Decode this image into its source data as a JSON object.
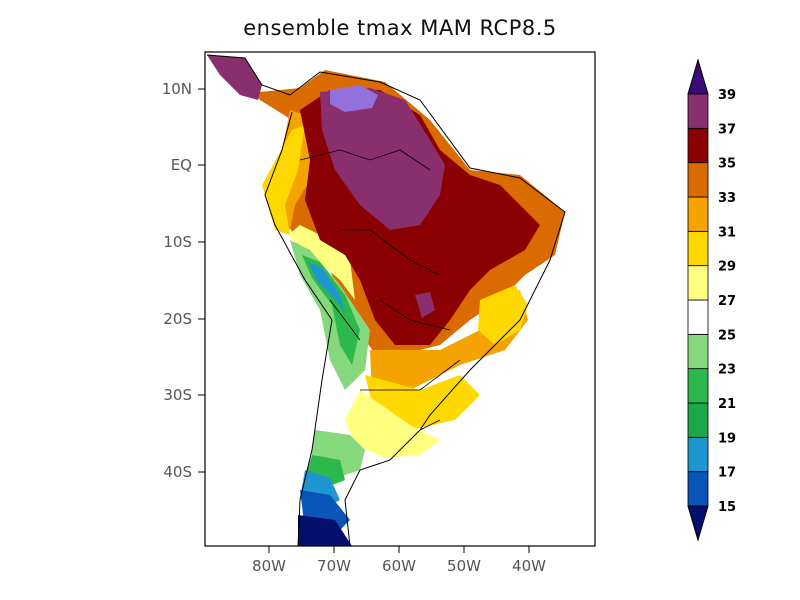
{
  "title": "ensemble tmax MAM RCP8.5",
  "map": {
    "lat_ticks": [
      "10N",
      "EQ",
      "10S",
      "20S",
      "30S",
      "40S"
    ],
    "lon_ticks": [
      "80W",
      "70W",
      "60W",
      "50W",
      "40W"
    ]
  },
  "colorbar": {
    "labels": [
      "15",
      "17",
      "19",
      "21",
      "23",
      "25",
      "27",
      "29",
      "31",
      "33",
      "35",
      "37",
      "39"
    ],
    "colors": [
      "#05106e",
      "#0a55b8",
      "#1e96d0",
      "#1ba848",
      "#2cb84c",
      "#86d87c",
      "#ffffff",
      "#ffff80",
      "#ffd800",
      "#f5a300",
      "#d96b00",
      "#8b0000",
      "#8a2f6e",
      "#9370db",
      "#3a0a78"
    ]
  }
}
